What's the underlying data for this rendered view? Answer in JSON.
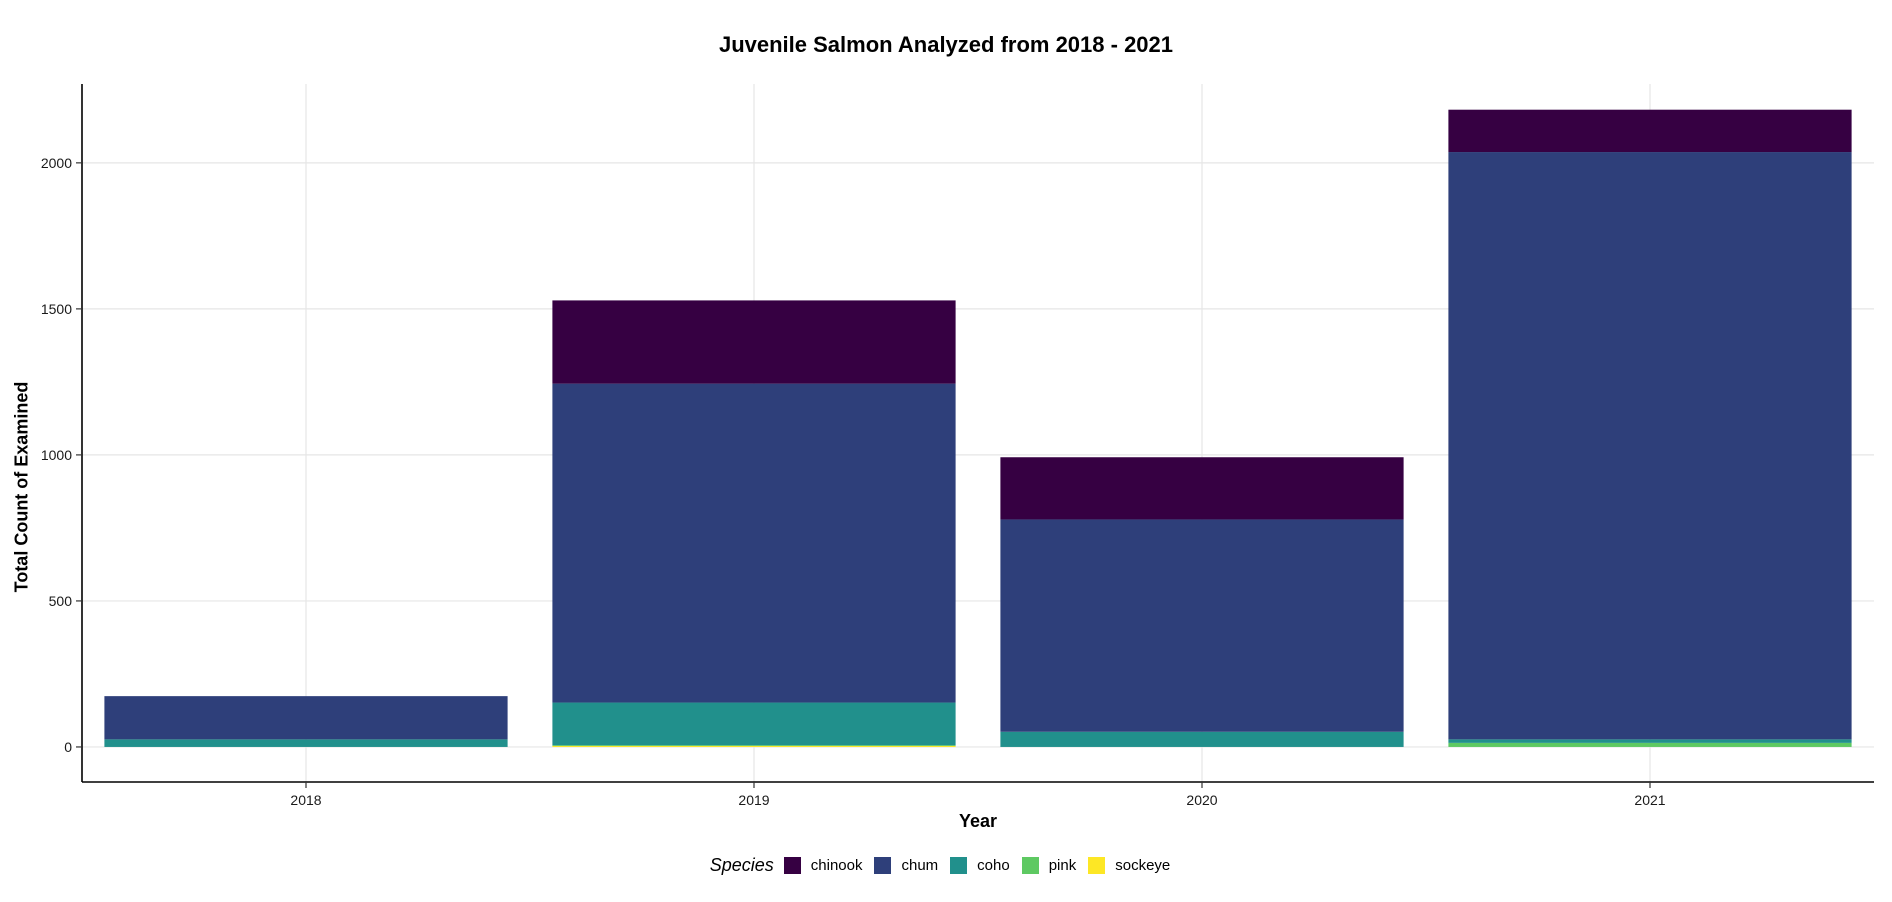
{
  "chart_data": {
    "type": "bar",
    "stacked": true,
    "title": "Juvenile Salmon Analyzed from 2018 - 2021",
    "xlabel": "Year",
    "ylabel": "Total Count of Examined",
    "categories": [
      "2018",
      "2019",
      "2020",
      "2021"
    ],
    "ylim": [
      -120,
      2270
    ],
    "yticks": [
      0,
      500,
      1000,
      1500,
      2000
    ],
    "grid": true,
    "legend": {
      "title": "Species",
      "position": "bottom"
    },
    "series": [
      {
        "name": "sockeye",
        "color": "#FDE725",
        "values": [
          0,
          4,
          0,
          0
        ]
      },
      {
        "name": "pink",
        "color": "#5EC962",
        "values": [
          0,
          2,
          0,
          14
        ]
      },
      {
        "name": "coho",
        "color": "#21908C",
        "values": [
          26,
          146,
          52,
          12
        ]
      },
      {
        "name": "chum",
        "color": "#2E3F7A",
        "values": [
          148,
          1092,
          727,
          2011
        ]
      },
      {
        "name": "chinook",
        "color": "#360042",
        "values": [
          0,
          285,
          213,
          145
        ]
      }
    ]
  }
}
